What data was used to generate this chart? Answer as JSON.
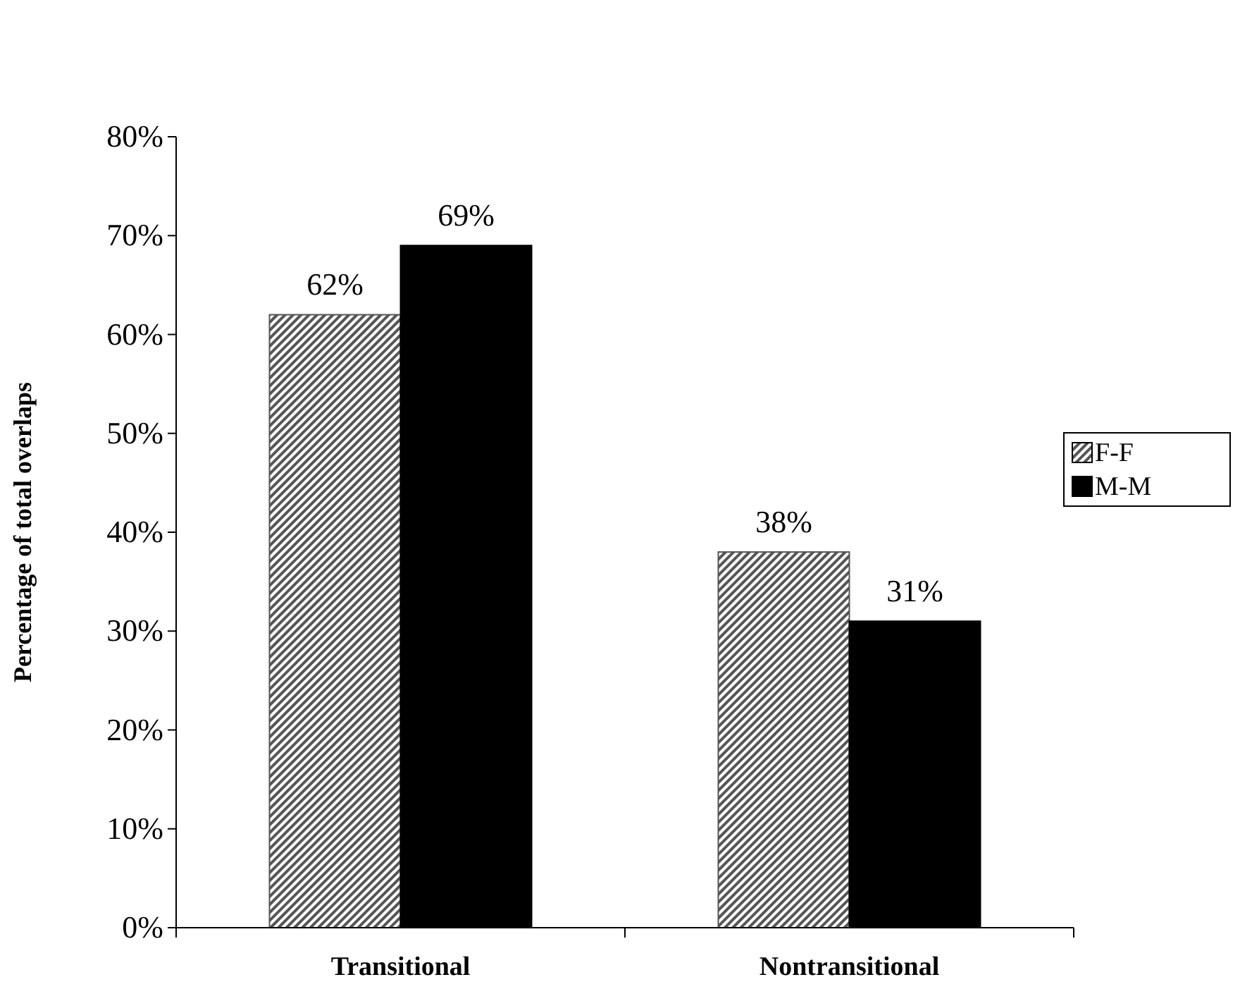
{
  "chart_data": {
    "type": "bar",
    "ylabel": "Percentage of total overlaps",
    "categories": [
      "Transitional",
      "Nontransitional"
    ],
    "series": [
      {
        "name": "F-F",
        "color": "#555555",
        "values": [
          62,
          38
        ],
        "value_labels": [
          "62%",
          "38%"
        ]
      },
      {
        "name": "M-M",
        "color": "#000000",
        "values": [
          69,
          31
        ],
        "value_labels": [
          "69%",
          "31%"
        ]
      }
    ],
    "ylim": [
      0,
      80
    ],
    "yticks": [
      {
        "value": 0,
        "label": "0%"
      },
      {
        "value": 10,
        "label": "10%"
      },
      {
        "value": 20,
        "label": "20%"
      },
      {
        "value": 30,
        "label": "30%"
      },
      {
        "value": 40,
        "label": "40%"
      },
      {
        "value": 50,
        "label": "50%"
      },
      {
        "value": 60,
        "label": "60%"
      },
      {
        "value": 70,
        "label": "70%"
      },
      {
        "value": 80,
        "label": "80%"
      }
    ],
    "grid": false,
    "legend": "right"
  }
}
